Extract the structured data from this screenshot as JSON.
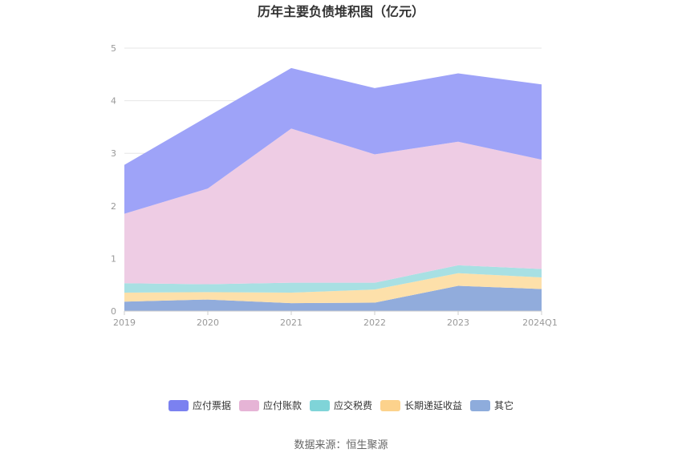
{
  "chart_data": {
    "type": "area",
    "stacked": true,
    "title": "历年主要负债堆积图（亿元）",
    "x": [
      "2019",
      "2020",
      "2021",
      "2022",
      "2023",
      "2024Q1"
    ],
    "y_ticks": [
      "0",
      "1",
      "2",
      "3",
      "4",
      "5"
    ],
    "ylim": [
      0,
      5
    ],
    "grid": true,
    "legend_position": "bottom",
    "series": [
      {
        "name": "其它",
        "color": "#91acdc",
        "values": [
          0.18,
          0.22,
          0.15,
          0.16,
          0.48,
          0.42
        ]
      },
      {
        "name": "长期递延收益",
        "color": "#fde0aa",
        "values": [
          0.17,
          0.14,
          0.2,
          0.25,
          0.24,
          0.22
        ]
      },
      {
        "name": "应交税费",
        "color": "#a8e0e3",
        "values": [
          0.18,
          0.15,
          0.19,
          0.13,
          0.15,
          0.16
        ]
      },
      {
        "name": "应付账款",
        "color": "#eecce4",
        "values": [
          1.32,
          1.82,
          2.93,
          2.44,
          2.35,
          2.08
        ]
      },
      {
        "name": "应付票据",
        "color": "#9ea3f8",
        "values": [
          0.93,
          1.37,
          1.15,
          1.26,
          1.3,
          1.43
        ]
      }
    ],
    "legend": [
      {
        "name": "应付票据",
        "color": "#7b81f0"
      },
      {
        "name": "应付账款",
        "color": "#e6b4d6"
      },
      {
        "name": "应交税费",
        "color": "#7fd4d8"
      },
      {
        "name": "长期递延收益",
        "color": "#fcd28c"
      },
      {
        "name": "其它",
        "color": "#8eacdc"
      }
    ]
  },
  "footer": {
    "source": "数据来源：恒生聚源"
  }
}
